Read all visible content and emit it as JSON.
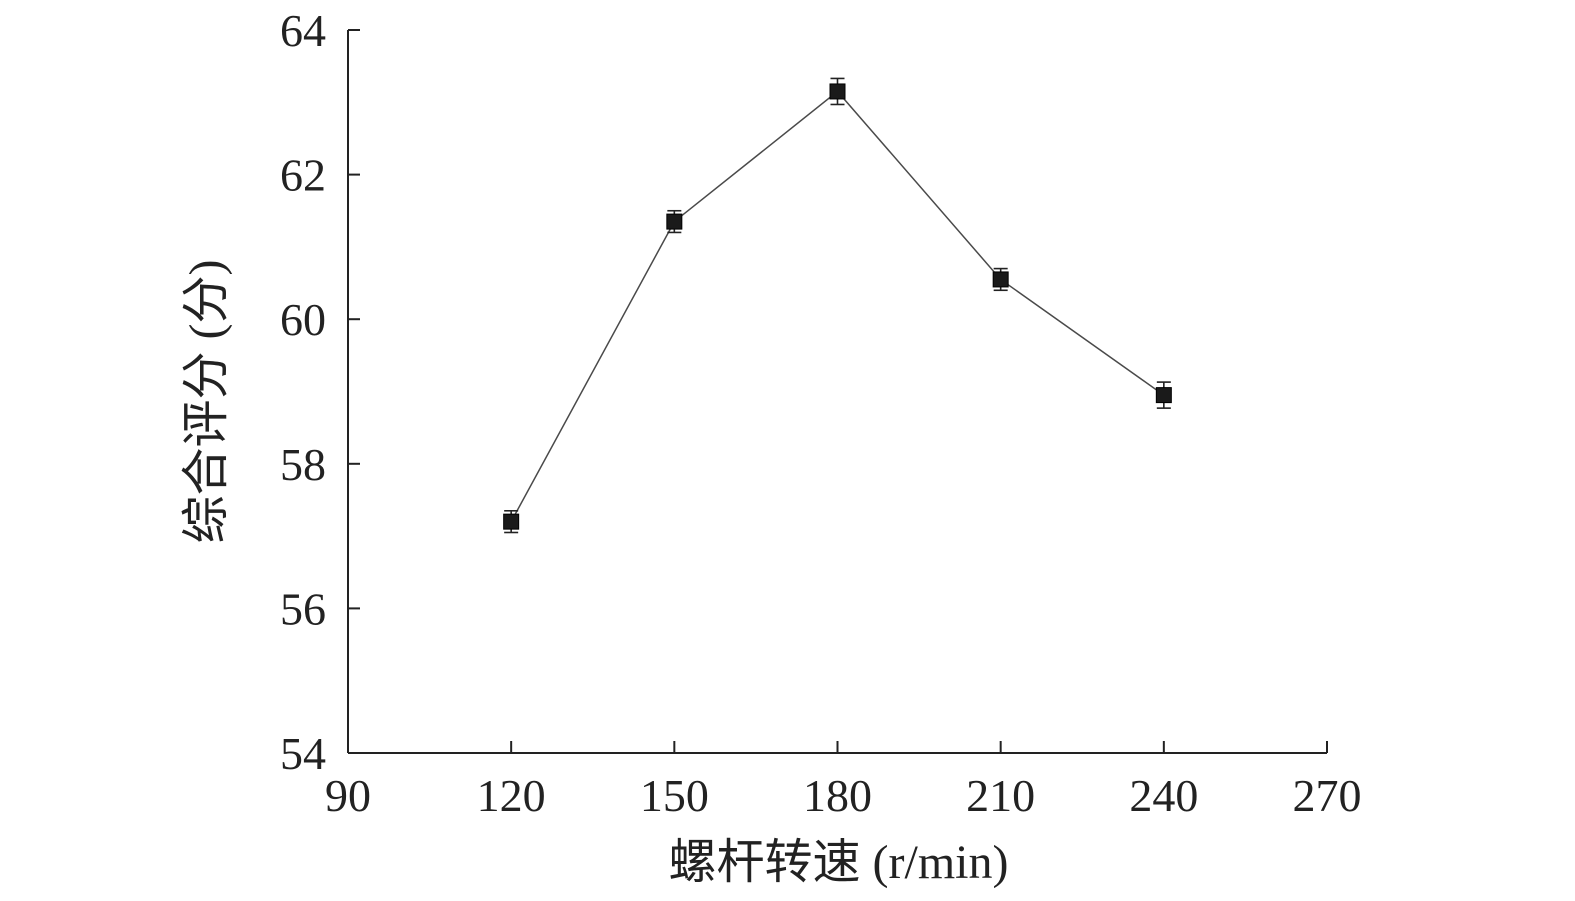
{
  "chart_data": {
    "type": "line",
    "title": "",
    "xlabel": "螺杆转速 (r/min)",
    "ylabel": "综合评分 (分)",
    "xlim": [
      90,
      270
    ],
    "ylim": [
      54,
      64
    ],
    "xticks": [
      90,
      120,
      150,
      180,
      210,
      240,
      270
    ],
    "yticks": [
      54,
      56,
      58,
      60,
      62,
      64
    ],
    "grid": false,
    "legend": "none",
    "marker": "square",
    "colors": {
      "line": "#4a4a4a",
      "marker": "#1a1a1a",
      "axis": "#222222"
    },
    "series": [
      {
        "x": [
          120,
          150,
          180,
          210,
          240
        ],
        "y": [
          57.2,
          61.35,
          63.15,
          60.55,
          58.95
        ],
        "error": [
          0.15,
          0.15,
          0.18,
          0.15,
          0.18
        ]
      }
    ]
  }
}
